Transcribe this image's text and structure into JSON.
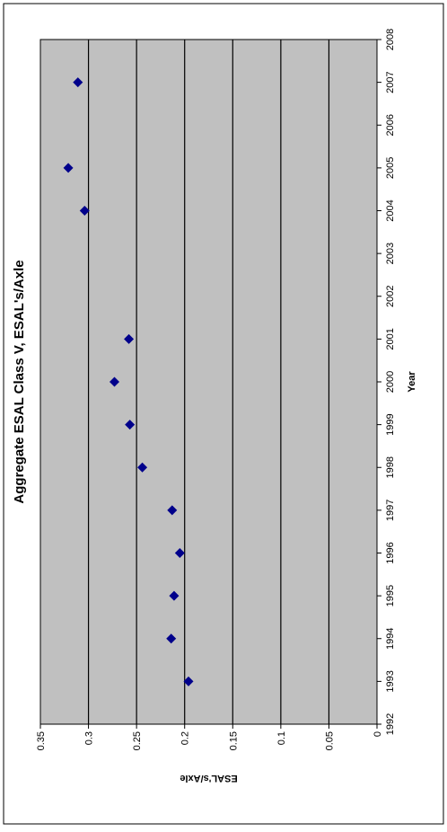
{
  "chart_data": {
    "type": "scatter",
    "title": "Aggregate ESAL Class V, ESAL's/Axle",
    "xlabel": "Year",
    "ylabel": "ESAL's/Axle",
    "xlim": [
      1992,
      2008
    ],
    "ylim": [
      0,
      0.35
    ],
    "x_ticks": [
      "1992",
      "1993",
      "1994",
      "1995",
      "1996",
      "1997",
      "1998",
      "1999",
      "2000",
      "2001",
      "2002",
      "2003",
      "2004",
      "2005",
      "2006",
      "2007",
      "2008"
    ],
    "y_ticks": [
      "0",
      "0.05",
      "0.1",
      "0.15",
      "0.2",
      "0.25",
      "0.3",
      "0.35"
    ],
    "grid": "horizontal major gridlines",
    "legend": "none",
    "orientation": "rotated 90 degrees counter-clockwise",
    "colors": {
      "plot_area": "#c0c0c0",
      "marker": "#00008b",
      "gridline": "#000000",
      "frame": "#000000"
    },
    "series": [
      {
        "marker": "diamond",
        "x": [
          1993,
          1994,
          1995,
          1996,
          1997,
          1998,
          1999,
          2000,
          2001,
          2004,
          2005,
          2007
        ],
        "y": [
          0.196,
          0.214,
          0.211,
          0.205,
          0.213,
          0.244,
          0.257,
          0.273,
          0.258,
          0.304,
          0.321,
          0.311
        ]
      }
    ]
  }
}
